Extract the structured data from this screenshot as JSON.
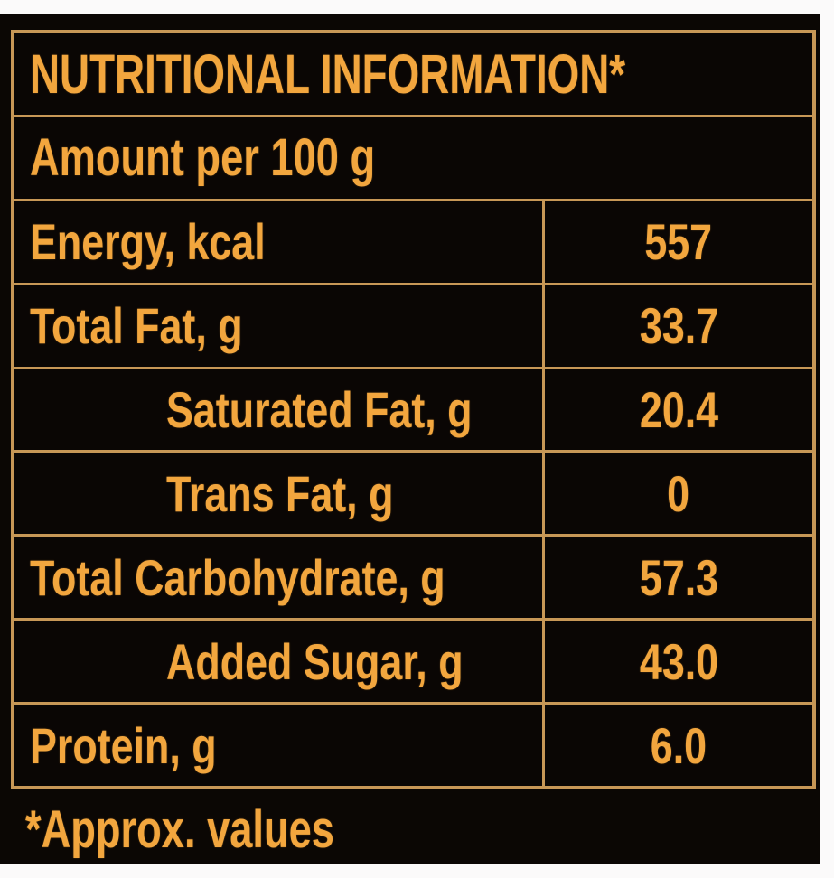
{
  "label": {
    "title": "NUTRITIONAL INFORMATION*",
    "subtitle": "Amount per 100 g",
    "rows": [
      {
        "name": "Energy, kcal",
        "value": "557",
        "indent": false
      },
      {
        "name": "Total Fat, g",
        "value": "33.7",
        "indent": false
      },
      {
        "name": "Saturated Fat, g",
        "value": "20.4",
        "indent": true
      },
      {
        "name": "Trans Fat, g",
        "value": "0",
        "indent": true
      },
      {
        "name": "Total Carbohydrate, g",
        "value": "57.3",
        "indent": false
      },
      {
        "name": "Added Sugar, g",
        "value": "43.0",
        "indent": true
      },
      {
        "name": "Protein, g",
        "value": "6.0",
        "indent": false
      }
    ],
    "footnote": "*Approx. values",
    "colors": {
      "page_background": "#fbfafa",
      "label_background": "#0b0704",
      "border": "#c79756",
      "text": "#f2a63e"
    }
  }
}
